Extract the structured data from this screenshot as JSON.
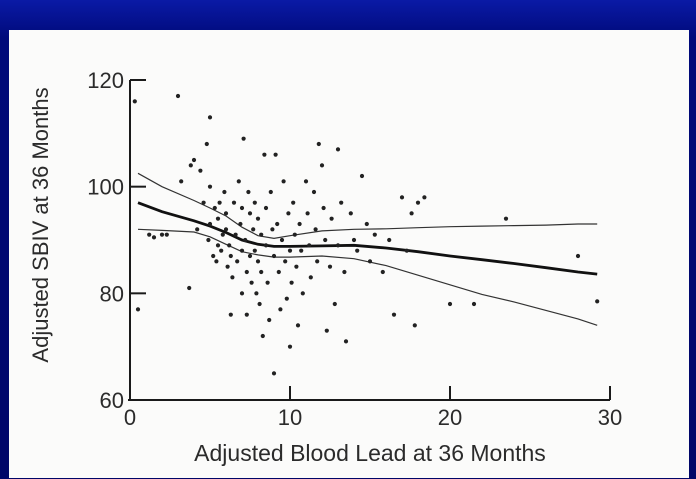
{
  "chart_data": {
    "type": "scatter",
    "xlabel": "Adjusted Blood Lead at 36 Months",
    "ylabel": "Adjusted SBIV at 36 Months",
    "xlim": [
      0,
      30
    ],
    "ylim": [
      60,
      120
    ],
    "x_ticks": [
      "0",
      "10",
      "20",
      "30"
    ],
    "y_ticks": [
      "60",
      "80",
      "100",
      "120"
    ],
    "grid": false,
    "legend": "none",
    "colors": {
      "points": "#222222",
      "fit": "#111111",
      "ci": "#333333",
      "background": "#fbfbfa",
      "frame": "#000a7a"
    },
    "points": [
      [
        0.5,
        77
      ],
      [
        1.2,
        91
      ],
      [
        1.5,
        90.5
      ],
      [
        2,
        91
      ],
      [
        2.3,
        91
      ],
      [
        3,
        117
      ],
      [
        3.2,
        101
      ],
      [
        3.7,
        81
      ],
      [
        3.8,
        104
      ],
      [
        4.0,
        105
      ],
      [
        4.2,
        92
      ],
      [
        4.4,
        103
      ],
      [
        4.6,
        97
      ],
      [
        4.8,
        108
      ],
      [
        4.9,
        90
      ],
      [
        5,
        113
      ],
      [
        5,
        100
      ],
      [
        5,
        93
      ],
      [
        5.2,
        87
      ],
      [
        5.3,
        96
      ],
      [
        5.4,
        86
      ],
      [
        5.5,
        94
      ],
      [
        5.5,
        89
      ],
      [
        5.6,
        97
      ],
      [
        5.7,
        88
      ],
      [
        5.8,
        91
      ],
      [
        5.9,
        99
      ],
      [
        6,
        95
      ],
      [
        6,
        92
      ],
      [
        6.1,
        85
      ],
      [
        6.2,
        89
      ],
      [
        6.3,
        87
      ],
      [
        6.3,
        76
      ],
      [
        6.4,
        83
      ],
      [
        6.5,
        97
      ],
      [
        6.6,
        91
      ],
      [
        6.7,
        86
      ],
      [
        6.8,
        101
      ],
      [
        6.9,
        93
      ],
      [
        7,
        96
      ],
      [
        7,
        88
      ],
      [
        7,
        80
      ],
      [
        7.1,
        109
      ],
      [
        7.2,
        90
      ],
      [
        7.3,
        84
      ],
      [
        7.3,
        76
      ],
      [
        7.4,
        99
      ],
      [
        7.5,
        95
      ],
      [
        7.5,
        87
      ],
      [
        7.6,
        82
      ],
      [
        7.7,
        92
      ],
      [
        7.8,
        97
      ],
      [
        7.8,
        88
      ],
      [
        7.9,
        80
      ],
      [
        8,
        94
      ],
      [
        8,
        86
      ],
      [
        8.1,
        78
      ],
      [
        8.2,
        91
      ],
      [
        8.2,
        84
      ],
      [
        8.3,
        72
      ],
      [
        8.4,
        106
      ],
      [
        8.5,
        96
      ],
      [
        8.5,
        89
      ],
      [
        8.6,
        82
      ],
      [
        8.7,
        75
      ],
      [
        8.8,
        99
      ],
      [
        8.9,
        92
      ],
      [
        9,
        87
      ],
      [
        9,
        65
      ],
      [
        9.1,
        106
      ],
      [
        9.2,
        93
      ],
      [
        9.3,
        84
      ],
      [
        9.4,
        77
      ],
      [
        9.5,
        90
      ],
      [
        9.6,
        101
      ],
      [
        9.7,
        86
      ],
      [
        9.8,
        79
      ],
      [
        9.9,
        95
      ],
      [
        10,
        88
      ],
      [
        10,
        70
      ],
      [
        10.1,
        82
      ],
      [
        10.2,
        97
      ],
      [
        10.3,
        91
      ],
      [
        10.4,
        85
      ],
      [
        10.5,
        74
      ],
      [
        10.6,
        93
      ],
      [
        10.7,
        88
      ],
      [
        10.8,
        80
      ],
      [
        11,
        101
      ],
      [
        11.1,
        95
      ],
      [
        11.2,
        89
      ],
      [
        11.3,
        83
      ],
      [
        11.5,
        99
      ],
      [
        11.6,
        92
      ],
      [
        11.7,
        86
      ],
      [
        11.8,
        108
      ],
      [
        12,
        104
      ],
      [
        12.1,
        96
      ],
      [
        12.2,
        90
      ],
      [
        12.3,
        73
      ],
      [
        12.5,
        85
      ],
      [
        12.6,
        94
      ],
      [
        12.8,
        78
      ],
      [
        13,
        107
      ],
      [
        13,
        89
      ],
      [
        13.2,
        97
      ],
      [
        13.4,
        84
      ],
      [
        13.5,
        71
      ],
      [
        13.8,
        95
      ],
      [
        14,
        90
      ],
      [
        14.2,
        88
      ],
      [
        14.5,
        102
      ],
      [
        14.8,
        93
      ],
      [
        15,
        86
      ],
      [
        15.3,
        91
      ],
      [
        15.8,
        84
      ],
      [
        16.2,
        90
      ],
      [
        16.5,
        76
      ],
      [
        17,
        98
      ],
      [
        17.3,
        88
      ],
      [
        17.6,
        95
      ],
      [
        17.8,
        74
      ],
      [
        18,
        97
      ],
      [
        18.4,
        98
      ],
      [
        20,
        78
      ],
      [
        21.5,
        78
      ],
      [
        23.5,
        94
      ],
      [
        28,
        87
      ],
      [
        29.2,
        78.5
      ],
      [
        0.3,
        116
      ]
    ],
    "fit_line": [
      [
        0.5,
        97
      ],
      [
        2,
        95.3
      ],
      [
        4,
        93.6
      ],
      [
        5,
        92.6
      ],
      [
        6,
        91.4
      ],
      [
        7,
        90
      ],
      [
        8,
        89.2
      ],
      [
        9,
        88.8
      ],
      [
        10,
        88.8
      ],
      [
        12,
        88.9
      ],
      [
        14,
        89
      ],
      [
        16,
        88.5
      ],
      [
        18,
        87.8
      ],
      [
        20,
        87
      ],
      [
        22,
        86.3
      ],
      [
        24,
        85.6
      ],
      [
        26,
        84.8
      ],
      [
        28,
        84
      ],
      [
        29.2,
        83.6
      ]
    ],
    "ci_upper": [
      [
        0.5,
        102.5
      ],
      [
        2,
        100
      ],
      [
        4,
        97.4
      ],
      [
        5,
        96
      ],
      [
        6,
        94.5
      ],
      [
        7,
        92.4
      ],
      [
        8,
        90.8
      ],
      [
        9,
        90.3
      ],
      [
        10,
        90.8
      ],
      [
        12,
        91.7
      ],
      [
        14,
        92
      ],
      [
        16,
        92.1
      ],
      [
        18,
        92.3
      ],
      [
        20,
        92.5
      ],
      [
        22,
        92.6
      ],
      [
        24,
        92.7
      ],
      [
        26,
        92.8
      ],
      [
        28,
        93
      ],
      [
        29.2,
        93
      ]
    ],
    "ci_lower": [
      [
        0.5,
        92
      ],
      [
        2,
        91.8
      ],
      [
        4,
        91.5
      ],
      [
        5,
        90.6
      ],
      [
        6,
        89.2
      ],
      [
        7,
        87.8
      ],
      [
        8,
        87.2
      ],
      [
        9,
        86.8
      ],
      [
        10,
        86.8
      ],
      [
        12,
        87
      ],
      [
        14,
        86.5
      ],
      [
        16,
        85.2
      ],
      [
        18,
        83.4
      ],
      [
        20,
        81.6
      ],
      [
        22,
        79.8
      ],
      [
        24,
        78.4
      ],
      [
        26,
        76.8
      ],
      [
        28,
        75.2
      ],
      [
        29.2,
        74
      ]
    ]
  }
}
